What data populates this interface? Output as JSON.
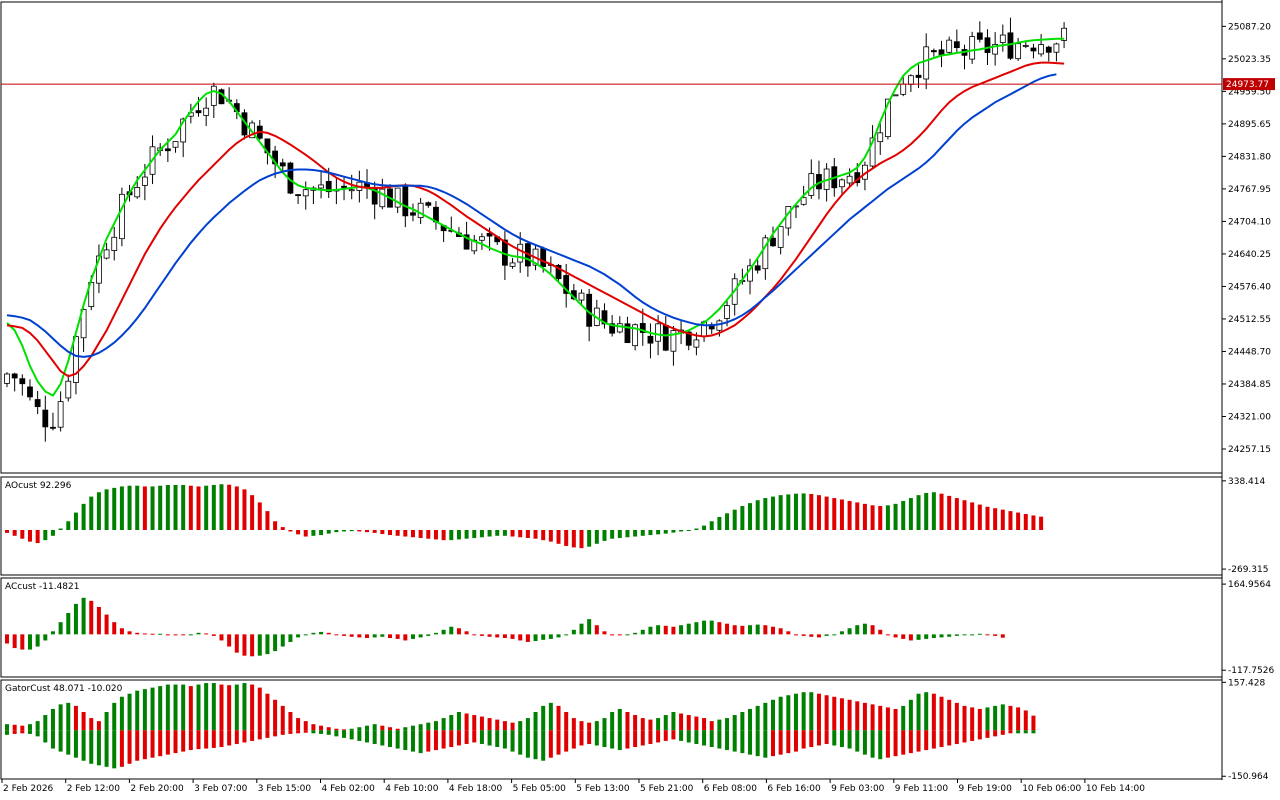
{
  "chart_data": [
    {
      "type": "candlestick",
      "panel": "main",
      "yticks": [
        "25087.20",
        "25023.35",
        "24959.50",
        "24895.65",
        "24831.80",
        "24767.95",
        "24704.10",
        "24640.25",
        "24576.40",
        "24512.55",
        "24448.70",
        "24384.85",
        "24321.00",
        "24257.15"
      ],
      "ylim": [
        24210,
        25135
      ],
      "current_price": 24973.77,
      "current_price_label": "24973.77",
      "colors": {
        "price_line": "#c00000",
        "fast_ma": "#00e000",
        "mid_ma": "#e00000",
        "slow_ma": "#0040d0",
        "up_candle": "#ffffff",
        "down_candle": "#000000"
      },
      "series": [
        {
          "name": "",
          "color": "#00e000",
          "values": [
            24505,
            24490,
            24460,
            24420,
            24390,
            24370,
            24362,
            24385,
            24430,
            24485,
            24540,
            24590,
            24630,
            24670,
            24700,
            24730,
            24760,
            24785,
            24805,
            24825,
            24845,
            24860,
            24875,
            24900,
            24920,
            24940,
            24955,
            24960,
            24955,
            24940,
            24920,
            24900,
            24880,
            24860,
            24840,
            24820,
            24800,
            24785,
            24775,
            24770,
            24768,
            24766,
            24765,
            24766,
            24768,
            24770,
            24772,
            24770,
            24765,
            24758,
            24750,
            24742,
            24734,
            24728,
            24720,
            24712,
            24704,
            24696,
            24688,
            24680,
            24672,
            24665,
            24660,
            24652,
            24646,
            24640,
            24636,
            24634,
            24630,
            24622,
            24612,
            24600,
            24585,
            24570,
            24555,
            24540,
            24525,
            24515,
            24505,
            24500,
            24498,
            24496,
            24494,
            24490,
            24485,
            24482,
            24480,
            24482,
            24485,
            24490,
            24498,
            24505,
            24518,
            24532,
            24550,
            24568,
            24590,
            24610,
            24632,
            24655,
            24680,
            24700,
            24720,
            24738,
            24755,
            24770,
            24780,
            24785,
            24790,
            24795,
            24800,
            24810,
            24830,
            24860,
            24900,
            24935,
            24965,
            24990,
            25005,
            25015,
            25020,
            25025,
            25030,
            25032,
            25035,
            25037,
            25040,
            25042,
            25045,
            25048,
            25050,
            25052,
            25055,
            25058,
            25060,
            25061,
            25062,
            25063,
            25063
          ]
        },
        {
          "name": "",
          "color": "#e00000",
          "values": [
            24500,
            24498,
            24495,
            24485,
            24470,
            24450,
            24430,
            24410,
            24400,
            24405,
            24420,
            24440,
            24465,
            24490,
            24520,
            24550,
            24580,
            24610,
            24640,
            24665,
            24690,
            24712,
            24732,
            24750,
            24768,
            24785,
            24800,
            24815,
            24830,
            24845,
            24858,
            24868,
            24875,
            24880,
            24878,
            24872,
            24864,
            24855,
            24845,
            24835,
            24824,
            24812,
            24800,
            24790,
            24782,
            24776,
            24772,
            24770,
            24770,
            24770,
            24772,
            24774,
            24775,
            24774,
            24770,
            24764,
            24756,
            24746,
            24736,
            24725,
            24714,
            24704,
            24694,
            24684,
            24674,
            24664,
            24655,
            24647,
            24640,
            24633,
            24626,
            24620,
            24612,
            24604,
            24596,
            24588,
            24580,
            24572,
            24564,
            24556,
            24548,
            24540,
            24532,
            24524,
            24516,
            24508,
            24500,
            24494,
            24488,
            24484,
            24480,
            24478,
            24480,
            24485,
            24492,
            24500,
            24512,
            24525,
            24540,
            24556,
            24572,
            24590,
            24610,
            24630,
            24652,
            24674,
            24696,
            24718,
            24738,
            24756,
            24772,
            24786,
            24798,
            24808,
            24818,
            24826,
            24834,
            24844,
            24856,
            24870,
            24886,
            24904,
            24922,
            24938,
            24950,
            24960,
            24968,
            24974,
            24980,
            24986,
            24992,
            24998,
            25004,
            25010,
            25014,
            25016,
            25016,
            25015,
            25014
          ]
        },
        {
          "name": "",
          "color": "#0040d0",
          "values": [
            24520,
            24518,
            24515,
            24510,
            24500,
            24488,
            24474,
            24460,
            24448,
            24440,
            24438,
            24440,
            24446,
            24455,
            24466,
            24480,
            24496,
            24514,
            24534,
            24556,
            24578,
            24600,
            24622,
            24642,
            24662,
            24680,
            24697,
            24712,
            24726,
            24740,
            24752,
            24764,
            24775,
            24785,
            24792,
            24798,
            24802,
            24805,
            24806,
            24806,
            24805,
            24803,
            24800,
            24796,
            24792,
            24788,
            24784,
            24780,
            24777,
            24775,
            24774,
            24774,
            24774,
            24774,
            24774,
            24772,
            24768,
            24762,
            24755,
            24747,
            24738,
            24728,
            24718,
            24708,
            24698,
            24688,
            24679,
            24671,
            24664,
            24658,
            24652,
            24646,
            24640,
            24634,
            24628,
            24622,
            24616,
            24608,
            24600,
            24590,
            24580,
            24568,
            24556,
            24545,
            24536,
            24528,
            24521,
            24515,
            24510,
            24506,
            24502,
            24500,
            24500,
            24502,
            24506,
            24512,
            24520,
            24530,
            24542,
            24555,
            24568,
            24582,
            24596,
            24610,
            24624,
            24638,
            24652,
            24666,
            24680,
            24694,
            24708,
            24720,
            24732,
            24744,
            24756,
            24768,
            24778,
            24788,
            24798,
            24808,
            24820,
            24834,
            24850,
            24866,
            24882,
            24896,
            24908,
            24918,
            24928,
            24938,
            24946,
            24954,
            24962,
            24970,
            24978,
            24985,
            24990,
            24993
          ]
        }
      ]
    },
    {
      "type": "bar",
      "panel": "AO",
      "title": "AOcust 92.296",
      "yticks": [
        "338.414",
        "-269.315"
      ],
      "ylim": [
        -310,
        365
      ],
      "colors": {
        "up": "#008000",
        "down": "#e00000"
      },
      "values": [
        -20,
        -40,
        -60,
        -80,
        -90,
        -70,
        -40,
        10,
        60,
        120,
        180,
        230,
        260,
        280,
        290,
        300,
        305,
        305,
        300,
        300,
        305,
        310,
        310,
        310,
        305,
        300,
        305,
        310,
        315,
        312,
        300,
        280,
        240,
        190,
        130,
        60,
        20,
        -10,
        -30,
        -45,
        -40,
        -35,
        -25,
        -15,
        -10,
        -8,
        -10,
        -15,
        -20,
        -28,
        -35,
        -40,
        -45,
        -50,
        -55,
        -60,
        -65,
        -70,
        -70,
        -65,
        -60,
        -55,
        -50,
        -45,
        -40,
        -40,
        -45,
        -50,
        -55,
        -60,
        -70,
        -80,
        -95,
        -110,
        -120,
        -125,
        -115,
        -95,
        -75,
        -60,
        -55,
        -50,
        -45,
        -40,
        -35,
        -30,
        -25,
        -18,
        -10,
        0,
        10,
        30,
        60,
        90,
        115,
        140,
        165,
        185,
        205,
        220,
        230,
        240,
        245,
        250,
        252,
        248,
        240,
        230,
        220,
        210,
        200,
        190,
        180,
        170,
        165,
        170,
        180,
        200,
        220,
        240,
        255,
        260,
        250,
        235,
        220,
        205,
        190,
        175,
        160,
        150,
        140,
        130,
        120,
        110,
        100,
        92
      ]
    },
    {
      "type": "bar",
      "panel": "AC",
      "title": "ACcust -11.4821",
      "yticks": [
        "164.9564",
        "-117.7526"
      ],
      "ylim": [
        -140,
        185
      ],
      "colors": {
        "up": "#008000",
        "down": "#e00000"
      },
      "values": [
        -30,
        -45,
        -50,
        -50,
        -40,
        -20,
        10,
        40,
        70,
        100,
        120,
        110,
        90,
        65,
        40,
        20,
        10,
        5,
        3,
        2,
        2,
        0,
        -2,
        -3,
        0,
        5,
        3,
        -5,
        -20,
        -40,
        -60,
        -70,
        -72,
        -70,
        -65,
        -55,
        -40,
        -25,
        -10,
        0,
        5,
        8,
        5,
        0,
        -5,
        -8,
        -10,
        -12,
        -10,
        -8,
        -12,
        -15,
        -20,
        -15,
        -10,
        -5,
        5,
        15,
        25,
        20,
        10,
        0,
        -5,
        -8,
        -10,
        -12,
        -15,
        -20,
        -25,
        -22,
        -18,
        -15,
        -10,
        0,
        15,
        35,
        50,
        30,
        10,
        0,
        -2,
        0,
        5,
        15,
        25,
        30,
        28,
        25,
        30,
        35,
        40,
        45,
        45,
        40,
        35,
        30,
        28,
        30,
        32,
        30,
        25,
        20,
        10,
        0,
        -5,
        -8,
        -10,
        -5,
        0,
        10,
        20,
        30,
        35,
        30,
        15,
        0,
        -10,
        -15,
        -20,
        -18,
        -15,
        -12,
        -10,
        -8,
        -5,
        -3,
        0,
        2,
        0,
        -5,
        -11
      ]
    },
    {
      "type": "bar",
      "panel": "Gator",
      "title": "GatorCust 48.071 -10.020",
      "yticks": [
        "157.428",
        "-150.964"
      ],
      "ylim": [
        -160,
        165
      ],
      "colors": {
        "up": "#008000",
        "down": "#e00000"
      },
      "upper": [
        20,
        18,
        15,
        20,
        30,
        50,
        70,
        85,
        90,
        80,
        60,
        40,
        30,
        60,
        90,
        110,
        120,
        130,
        135,
        140,
        145,
        150,
        150,
        150,
        145,
        150,
        155,
        155,
        150,
        148,
        150,
        155,
        150,
        140,
        120,
        100,
        80,
        60,
        40,
        30,
        20,
        15,
        10,
        5,
        3,
        5,
        10,
        15,
        20,
        15,
        10,
        5,
        10,
        15,
        20,
        25,
        30,
        40,
        50,
        60,
        55,
        50,
        45,
        40,
        35,
        30,
        25,
        30,
        40,
        60,
        80,
        90,
        80,
        60,
        40,
        30,
        25,
        30,
        40,
        60,
        70,
        60,
        50,
        40,
        35,
        40,
        50,
        60,
        55,
        50,
        45,
        40,
        30,
        35,
        40,
        50,
        60,
        70,
        80,
        90,
        100,
        110,
        115,
        120,
        125,
        125,
        120,
        115,
        110,
        105,
        100,
        95,
        90,
        85,
        80,
        75,
        70,
        80,
        100,
        120,
        125,
        120,
        110,
        100,
        90,
        80,
        75,
        70,
        75,
        80,
        85,
        80,
        75,
        65,
        48
      ],
      "lower": [
        -15,
        -12,
        -10,
        -12,
        -20,
        -40,
        -60,
        -70,
        -80,
        -90,
        -100,
        -110,
        -115,
        -120,
        -125,
        -120,
        -110,
        -100,
        -95,
        -90,
        -85,
        -80,
        -75,
        -70,
        -65,
        -62,
        -60,
        -58,
        -55,
        -50,
        -45,
        -40,
        -35,
        -30,
        -25,
        -20,
        -15,
        -12,
        -10,
        -8,
        -10,
        -12,
        -15,
        -20,
        -25,
        -30,
        -35,
        -40,
        -45,
        -50,
        -55,
        -60,
        -65,
        -70,
        -75,
        -70,
        -65,
        -60,
        -55,
        -50,
        -45,
        -40,
        -45,
        -50,
        -55,
        -60,
        -70,
        -80,
        -90,
        -95,
        -100,
        -90,
        -80,
        -70,
        -60,
        -50,
        -45,
        -50,
        -55,
        -60,
        -65,
        -60,
        -55,
        -50,
        -45,
        -40,
        -35,
        -30,
        -35,
        -40,
        -45,
        -50,
        -55,
        -60,
        -65,
        -70,
        -75,
        -80,
        -85,
        -90,
        -85,
        -80,
        -75,
        -70,
        -60,
        -55,
        -50,
        -45,
        -50,
        -55,
        -60,
        -70,
        -80,
        -90,
        -95,
        -90,
        -85,
        -80,
        -75,
        -70,
        -65,
        -60,
        -55,
        -50,
        -45,
        -40,
        -35,
        -30,
        -25,
        -20,
        -15,
        -10,
        -10,
        -10,
        -10
      ]
    }
  ],
  "xticks": [
    "2 Feb 2026",
    "2 Feb 12:00",
    "2 Feb 20:00",
    "3 Feb 07:00",
    "3 Feb 15:00",
    "4 Feb 02:00",
    "4 Feb 10:00",
    "4 Feb 18:00",
    "5 Feb 05:00",
    "5 Feb 13:00",
    "5 Feb 21:00",
    "6 Feb 08:00",
    "6 Feb 16:00",
    "9 Feb 03:00",
    "9 Feb 11:00",
    "9 Feb 19:00",
    "10 Feb 06:00",
    "10 Feb 14:00"
  ]
}
